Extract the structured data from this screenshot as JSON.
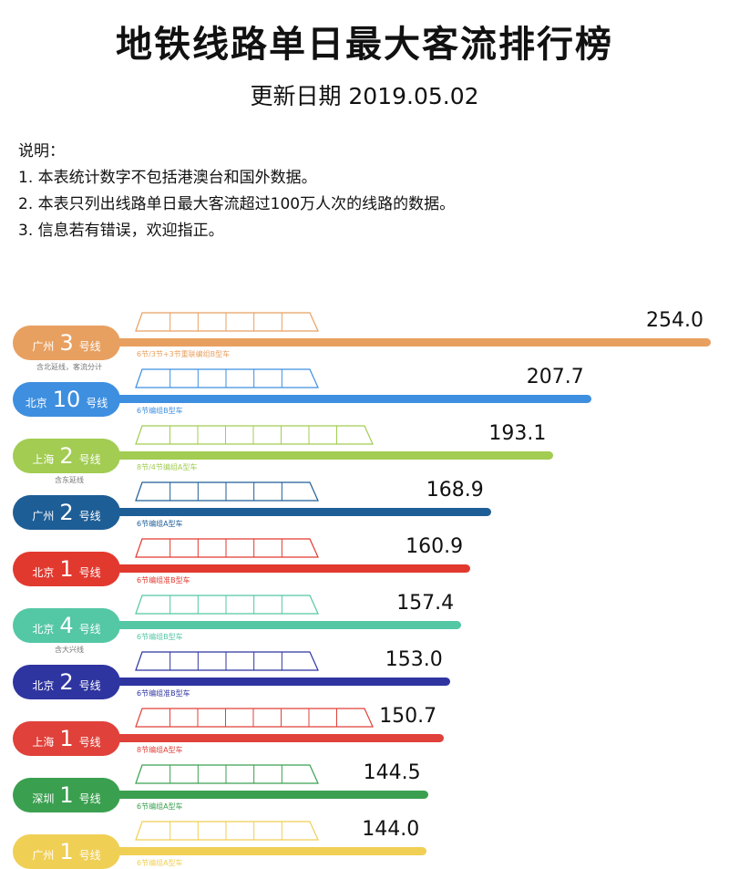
{
  "header": {
    "title": "地铁线路单日最大客流排行榜",
    "subtitle": "更新日期 2019.05.02"
  },
  "notes": [
    "说明：",
    "1. 本表统计数字不包括港澳台和国外数据。",
    "2. 本表只列出线路单日最大客流超过100万人次的线路的数据。",
    "3. 信息若有错误，欢迎指正。"
  ],
  "chart_data": {
    "type": "bar",
    "title": "地铁线路单日最大客流排行榜",
    "categories": [
      "广州3号线",
      "北京10号线",
      "上海2号线",
      "广州2号线",
      "北京1号线",
      "北京4号线",
      "北京2号线",
      "上海1号线",
      "深圳1号线",
      "广州1号线"
    ],
    "values": [
      254.0,
      207.7,
      193.1,
      168.9,
      160.9,
      157.4,
      153.0,
      150.7,
      144.5,
      144.0
    ],
    "value_labels": [
      "254.0",
      "207.7",
      "193.1",
      "168.9",
      "160.9",
      "157.4",
      "153.0",
      "150.7",
      "144.5",
      "144.0"
    ],
    "lines": [
      {
        "city": "广州",
        "number": "3",
        "suffix": "号线",
        "color": "#e8a060",
        "train": "6节/3节+3节重联编组B型车",
        "cars": 6,
        "sub": "含北延线，客流分计"
      },
      {
        "city": "北京",
        "number": "10",
        "suffix": "号线",
        "color": "#3e8fe0",
        "train": "6节编组B型车",
        "cars": 6,
        "sub": ""
      },
      {
        "city": "上海",
        "number": "2",
        "suffix": "号线",
        "color": "#a2cc52",
        "train": "8节/4节编组A型车",
        "cars": 8,
        "sub": "含东延线"
      },
      {
        "city": "广州",
        "number": "2",
        "suffix": "号线",
        "color": "#1e5e96",
        "train": "6节编组A型车",
        "cars": 6,
        "sub": ""
      },
      {
        "city": "北京",
        "number": "1",
        "suffix": "号线",
        "color": "#e2392f",
        "train": "6节编组准B型车",
        "cars": 6,
        "sub": ""
      },
      {
        "city": "北京",
        "number": "4",
        "suffix": "号线",
        "color": "#54c7a5",
        "train": "6节编组B型车",
        "cars": 6,
        "sub": "含大兴线"
      },
      {
        "city": "北京",
        "number": "2",
        "suffix": "号线",
        "color": "#2e35a0",
        "train": "6节编组准B型车",
        "cars": 6,
        "sub": ""
      },
      {
        "city": "上海",
        "number": "1",
        "suffix": "号线",
        "color": "#e0413a",
        "train": "8节编组A型车",
        "cars": 8,
        "sub": ""
      },
      {
        "city": "深圳",
        "number": "1",
        "suffix": "号线",
        "color": "#3aa050",
        "train": "6节编组A型车",
        "cars": 6,
        "sub": ""
      },
      {
        "city": "广州",
        "number": "1",
        "suffix": "号线",
        "color": "#f0cf55",
        "train": "6节编组A型车",
        "cars": 6,
        "sub": ""
      }
    ]
  }
}
